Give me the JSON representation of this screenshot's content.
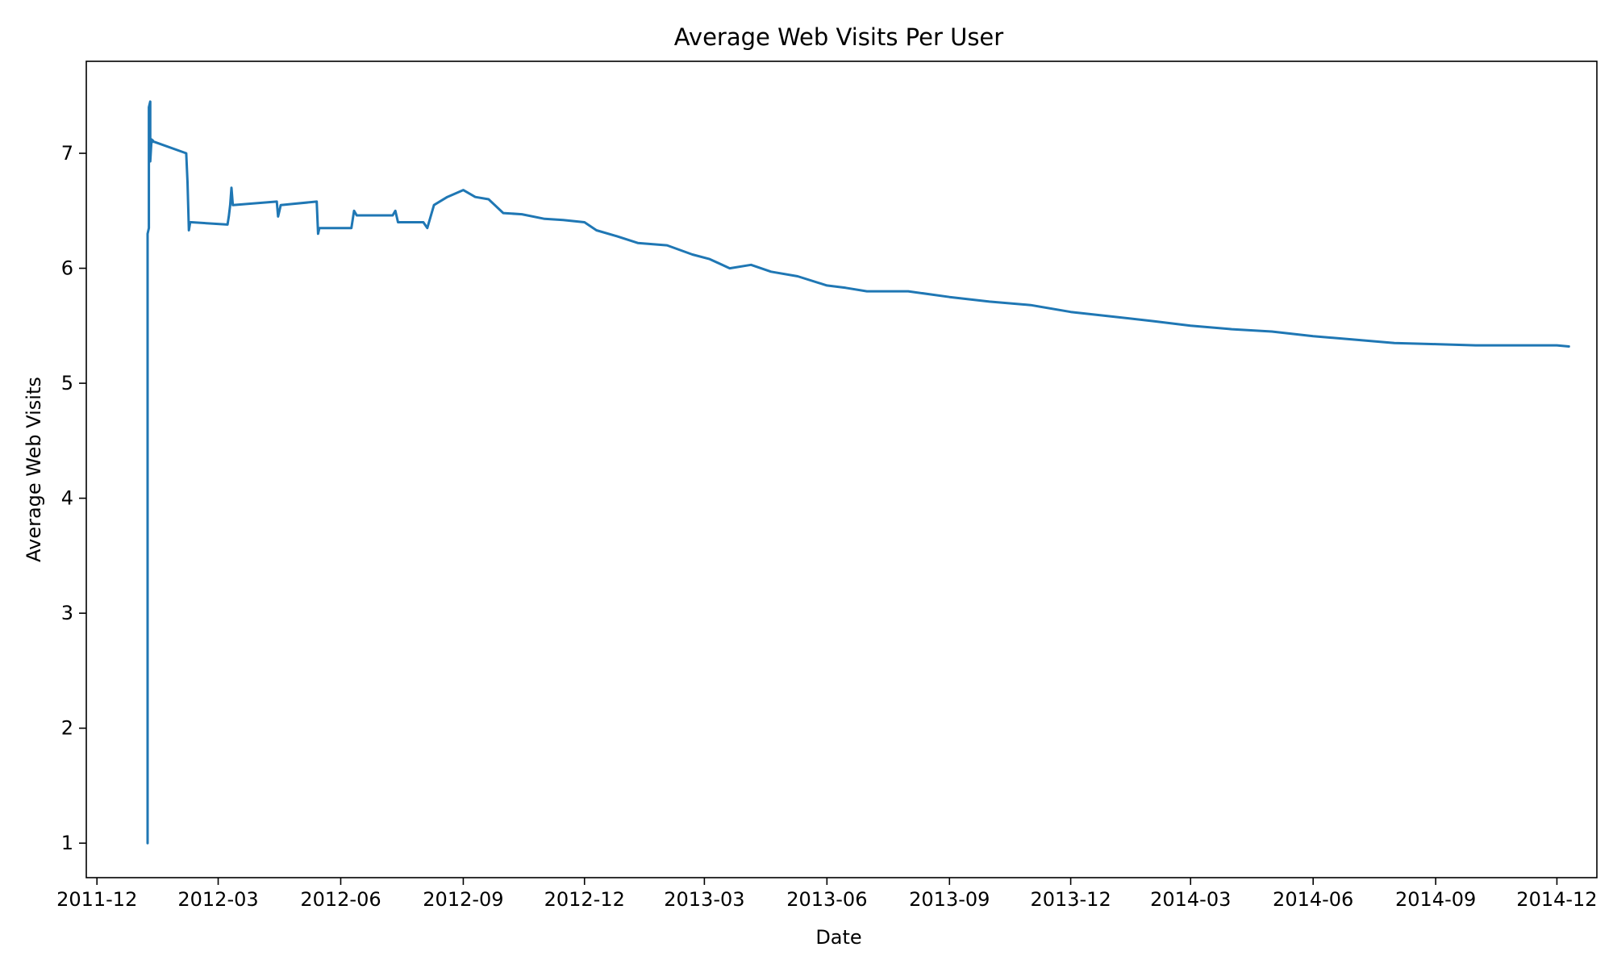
{
  "chart_data": {
    "type": "line",
    "title": "Average Web Visits Per User",
    "xlabel": "Date",
    "ylabel": "Average Web Visits",
    "x_ticks": [
      "2011-12",
      "2012-03",
      "2012-06",
      "2012-09",
      "2012-12",
      "2013-03",
      "2013-06",
      "2013-09",
      "2013-12",
      "2014-03",
      "2014-06",
      "2014-09",
      "2014-12"
    ],
    "y_ticks": [
      1,
      2,
      3,
      4,
      5,
      6,
      7
    ],
    "xlim": [
      "2011-11-23",
      "2014-12-31"
    ],
    "ylim": [
      0.7,
      7.8
    ],
    "grid": false,
    "legend": "none",
    "series": [
      {
        "color": "#1f77b4",
        "x": [
          "2012-01-08",
          "2012-01-08",
          "2012-01-09",
          "2012-01-09",
          "2012-01-10",
          "2012-01-10",
          "2012-01-11",
          "2012-01-11",
          "2012-01-12",
          "2012-01-12",
          "2012-01-13",
          "2012-02-06",
          "2012-02-07",
          "2012-02-08",
          "2012-02-09",
          "2012-02-10",
          "2012-02-10",
          "2012-03-08",
          "2012-03-09",
          "2012-03-10",
          "2012-03-11",
          "2012-03-12",
          "2012-04-14",
          "2012-04-15",
          "2012-04-16",
          "2012-04-17",
          "2012-05-14",
          "2012-05-15",
          "2012-05-16",
          "2012-06-09",
          "2012-06-11",
          "2012-06-13",
          "2012-07-10",
          "2012-07-12",
          "2012-07-14",
          "2012-08-02",
          "2012-08-05",
          "2012-08-10",
          "2012-08-20",
          "2012-09-01",
          "2012-09-10",
          "2012-09-20",
          "2012-10-01",
          "2012-10-15",
          "2012-11-01",
          "2012-11-15",
          "2012-12-01",
          "2012-12-10",
          "2012-12-25",
          "2013-01-10",
          "2013-02-01",
          "2013-02-20",
          "2013-03-05",
          "2013-03-20",
          "2013-04-05",
          "2013-04-20",
          "2013-05-10",
          "2013-06-01",
          "2013-06-15",
          "2013-07-01",
          "2013-08-01",
          "2013-09-01",
          "2013-10-01",
          "2013-11-01",
          "2013-12-01",
          "2014-01-01",
          "2014-02-01",
          "2014-03-01",
          "2014-04-01",
          "2014-05-01",
          "2014-06-01",
          "2014-07-01",
          "2014-08-01",
          "2014-09-01",
          "2014-10-01",
          "2014-11-01",
          "2014-12-01",
          "2014-12-10"
        ],
        "y": [
          1.0,
          6.3,
          6.35,
          7.4,
          7.45,
          6.93,
          7.12,
          7.12,
          7.11,
          7.1,
          7.1,
          7.0,
          6.75,
          6.33,
          6.4,
          6.4,
          6.4,
          6.38,
          6.45,
          6.55,
          6.7,
          6.55,
          6.58,
          6.45,
          6.5,
          6.55,
          6.58,
          6.3,
          6.35,
          6.35,
          6.5,
          6.46,
          6.46,
          6.5,
          6.4,
          6.4,
          6.35,
          6.55,
          6.62,
          6.68,
          6.62,
          6.6,
          6.48,
          6.47,
          6.43,
          6.42,
          6.4,
          6.33,
          6.28,
          6.22,
          6.2,
          6.12,
          6.08,
          6.0,
          6.03,
          5.97,
          5.93,
          5.85,
          5.83,
          5.8,
          5.8,
          5.75,
          5.71,
          5.68,
          5.62,
          5.58,
          5.54,
          5.5,
          5.47,
          5.45,
          5.41,
          5.38,
          5.35,
          5.34,
          5.33,
          5.33,
          5.33,
          5.32
        ]
      }
    ]
  }
}
